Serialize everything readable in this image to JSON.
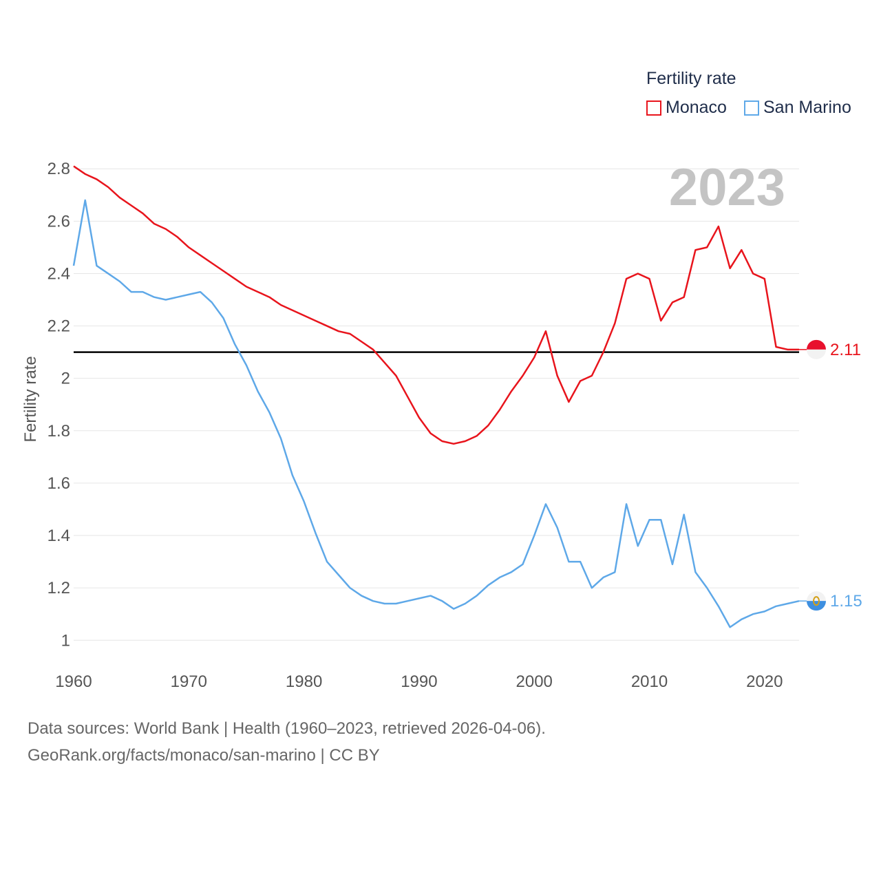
{
  "legend": {
    "title": "Fertility rate",
    "items": [
      {
        "name": "Monaco",
        "color": "#e8141c"
      },
      {
        "name": "San Marino",
        "color": "#5ea8e8"
      }
    ]
  },
  "footer": {
    "line1": "Data sources: World Bank | Health (1960–2023, retrieved 2026-04-06).",
    "line2": "GeoRank.org/facts/monaco/san-marino | CC BY"
  },
  "chart_data": {
    "type": "line",
    "title": "Fertility rate",
    "year_label": "2023",
    "ylabel": "Fertility rate",
    "xlabel": "",
    "xlim": [
      1960,
      2023
    ],
    "ylim": [
      0.935,
      2.84
    ],
    "xticks": [
      1960,
      1970,
      1980,
      1990,
      2000,
      2010,
      2020
    ],
    "yticks": [
      1,
      1.2,
      1.4,
      1.6,
      1.8,
      2,
      2.2,
      2.4,
      2.6,
      2.8
    ],
    "ytick_labels": [
      "1",
      "1.2",
      "1.4",
      "1.6",
      "1.8",
      "2",
      "2.2",
      "2.4",
      "2.6",
      "2.8"
    ],
    "reference_line": 2.1,
    "series": [
      {
        "name": "Monaco",
        "color": "#e8141c",
        "end_label": "2.11",
        "x": [
          1960,
          1961,
          1962,
          1963,
          1964,
          1965,
          1966,
          1967,
          1968,
          1969,
          1970,
          1971,
          1972,
          1973,
          1974,
          1975,
          1976,
          1977,
          1978,
          1979,
          1980,
          1981,
          1982,
          1983,
          1984,
          1985,
          1986,
          1987,
          1988,
          1989,
          1990,
          1991,
          1992,
          1993,
          1994,
          1995,
          1996,
          1997,
          1998,
          1999,
          2000,
          2001,
          2002,
          2003,
          2004,
          2005,
          2006,
          2007,
          2008,
          2009,
          2010,
          2011,
          2012,
          2013,
          2014,
          2015,
          2016,
          2017,
          2018,
          2019,
          2020,
          2021,
          2022,
          2023
        ],
        "values": [
          2.81,
          2.78,
          2.76,
          2.73,
          2.69,
          2.66,
          2.63,
          2.59,
          2.57,
          2.54,
          2.5,
          2.47,
          2.44,
          2.41,
          2.38,
          2.35,
          2.33,
          2.31,
          2.28,
          2.26,
          2.24,
          2.22,
          2.2,
          2.18,
          2.17,
          2.14,
          2.11,
          2.06,
          2.01,
          1.93,
          1.85,
          1.79,
          1.76,
          1.75,
          1.76,
          1.78,
          1.82,
          1.88,
          1.95,
          2.01,
          2.08,
          2.18,
          2.01,
          1.91,
          1.99,
          2.01,
          2.1,
          2.21,
          2.38,
          2.4,
          2.38,
          2.22,
          2.29,
          2.31,
          2.49,
          2.5,
          2.58,
          2.42,
          2.49,
          2.4,
          2.38,
          2.12,
          2.11,
          2.11
        ]
      },
      {
        "name": "San Marino",
        "color": "#5ea8e8",
        "end_label": "1.15",
        "x": [
          1960,
          1961,
          1962,
          1963,
          1964,
          1965,
          1966,
          1967,
          1968,
          1969,
          1970,
          1971,
          1972,
          1973,
          1974,
          1975,
          1976,
          1977,
          1978,
          1979,
          1980,
          1981,
          1982,
          1983,
          1984,
          1985,
          1986,
          1987,
          1988,
          1989,
          1990,
          1991,
          1992,
          1993,
          1994,
          1995,
          1996,
          1997,
          1998,
          1999,
          2000,
          2001,
          2002,
          2003,
          2004,
          2005,
          2006,
          2007,
          2008,
          2009,
          2010,
          2011,
          2012,
          2013,
          2014,
          2015,
          2016,
          2017,
          2018,
          2019,
          2020,
          2021,
          2022,
          2023
        ],
        "values": [
          2.43,
          2.68,
          2.43,
          2.4,
          2.37,
          2.33,
          2.33,
          2.31,
          2.3,
          2.31,
          2.32,
          2.33,
          2.29,
          2.23,
          2.13,
          2.05,
          1.95,
          1.87,
          1.77,
          1.63,
          1.53,
          1.41,
          1.3,
          1.25,
          1.2,
          1.17,
          1.15,
          1.14,
          1.14,
          1.15,
          1.16,
          1.17,
          1.15,
          1.12,
          1.14,
          1.17,
          1.21,
          1.24,
          1.26,
          1.29,
          1.4,
          1.52,
          1.43,
          1.3,
          1.3,
          1.2,
          1.24,
          1.26,
          1.52,
          1.36,
          1.46,
          1.46,
          1.29,
          1.48,
          1.26,
          1.2,
          1.13,
          1.05,
          1.08,
          1.1,
          1.11,
          1.13,
          1.14,
          1.15
        ]
      }
    ]
  }
}
